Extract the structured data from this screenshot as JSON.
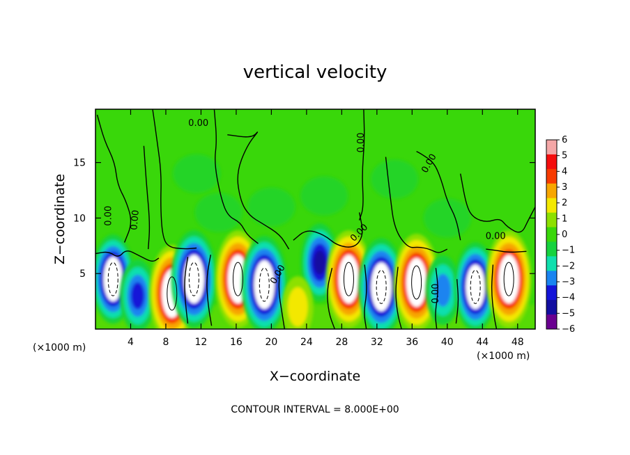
{
  "chart_data": {
    "type": "heatmap",
    "title": "vertical velocity",
    "xlabel": "X−coordinate",
    "ylabel": "Z−coordinate",
    "x_unit": "(×1000 m)",
    "y_unit": "(×1000 m)",
    "xlim": [
      0,
      50
    ],
    "ylim": [
      0,
      19.8
    ],
    "xticks": [
      4,
      8,
      12,
      16,
      20,
      24,
      28,
      32,
      36,
      40,
      44,
      48
    ],
    "xtick_labels": [
      "4",
      "8",
      "12",
      "16",
      "20",
      "24",
      "28",
      "32",
      "36",
      "40",
      "44",
      "48"
    ],
    "yticks": [
      5,
      10,
      15
    ],
    "ytick_labels": [
      "5",
      "10",
      "15"
    ],
    "colorbar": {
      "levels": [
        6,
        5,
        4,
        3,
        2,
        1,
        0,
        -1,
        -2,
        -3,
        -4,
        -5,
        -6
      ],
      "labels": [
        "6",
        "5",
        "4",
        "3",
        "2",
        "1",
        "0",
        "−1",
        "−2",
        "−3",
        "−4",
        "−5",
        "−6"
      ],
      "colors": [
        "#f4a7a7",
        "#f40d0d",
        "#f73b00",
        "#f7a600",
        "#f3e800",
        "#8de000",
        "#39d70a",
        "#16d23e",
        "#10dfae",
        "#1a84f0",
        "#1414d8",
        "#120ea0",
        "#6a0090"
      ]
    },
    "contour_label": "0.00",
    "contour_interval_text": "CONTOUR INTERVAL = 8.000E+00",
    "cells": [
      {
        "x": 2.0,
        "z": 4.5,
        "amp": -6.5
      },
      {
        "x": 4.8,
        "z": 3.0,
        "amp": -3.5
      },
      {
        "x": 8.7,
        "z": 3.2,
        "amp": 8.0
      },
      {
        "x": 11.2,
        "z": 4.5,
        "amp": -8.0
      },
      {
        "x": 16.2,
        "z": 4.5,
        "amp": 8.0
      },
      {
        "x": 19.2,
        "z": 4.0,
        "amp": -8.0
      },
      {
        "x": 25.5,
        "z": 6.0,
        "amp": -4.5
      },
      {
        "x": 23.0,
        "z": 2.0,
        "amp": 1.5
      },
      {
        "x": 28.8,
        "z": 4.5,
        "amp": 8.0
      },
      {
        "x": 32.5,
        "z": 3.8,
        "amp": -8.0
      },
      {
        "x": 36.5,
        "z": 4.2,
        "amp": 8.0
      },
      {
        "x": 39.5,
        "z": 3.5,
        "amp": -3.0
      },
      {
        "x": 43.2,
        "z": 3.8,
        "amp": -6.5
      },
      {
        "x": 47.0,
        "z": 4.5,
        "amp": 8.0
      }
    ]
  }
}
